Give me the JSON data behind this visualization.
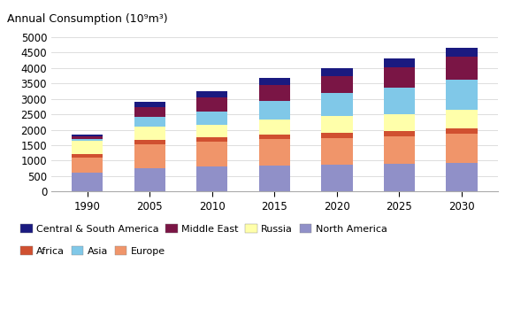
{
  "years": [
    "1990",
    "2005",
    "2010",
    "2015",
    "2020",
    "2025",
    "2030"
  ],
  "categories_bottom_to_top": [
    "North America",
    "Europe",
    "Africa",
    "Russia",
    "Asia",
    "Middle East",
    "Central & South America"
  ],
  "colors": {
    "North America": "#9090c8",
    "Europe": "#f0956a",
    "Africa": "#d05030",
    "Russia": "#ffffaa",
    "Asia": "#80c8e8",
    "Middle East": "#7a1545",
    "Central & South America": "#1a1a80"
  },
  "values": {
    "North America": [
      620,
      770,
      820,
      850,
      870,
      890,
      940
    ],
    "Europe": [
      480,
      770,
      800,
      850,
      870,
      890,
      930
    ],
    "Africa": [
      120,
      130,
      145,
      150,
      160,
      170,
      185
    ],
    "Russia": [
      430,
      430,
      395,
      480,
      560,
      555,
      600
    ],
    "Asia": [
      50,
      330,
      440,
      590,
      720,
      870,
      960
    ],
    "Middle East": [
      85,
      310,
      460,
      530,
      570,
      660,
      750
    ],
    "Central & South America": [
      65,
      160,
      200,
      230,
      240,
      265,
      290
    ]
  },
  "ylabel": "Annual Consumption (10⁹m³)",
  "ylim": [
    0,
    5000
  ],
  "yticks": [
    0,
    500,
    1000,
    1500,
    2000,
    2500,
    3000,
    3500,
    4000,
    4500,
    5000
  ],
  "background_color": "#ffffff",
  "bar_width": 0.5,
  "title_fontsize": 9,
  "tick_fontsize": 8.5,
  "legend_fontsize": 8,
  "legend_row1": [
    "Central & South America",
    "Middle East",
    "Russia",
    "North America"
  ],
  "legend_row2": [
    "Africa",
    "Asia",
    "Europe"
  ]
}
